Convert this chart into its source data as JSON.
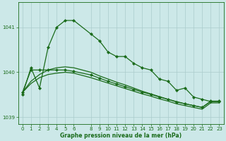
{
  "title": "Graphe pression niveau de la mer (hPa)",
  "bg_color": "#cce8e8",
  "grid_color": "#aacccc",
  "line_color": "#1a6b1a",
  "xlim": [
    -0.5,
    23.5
  ],
  "ylim": [
    1038.85,
    1041.55
  ],
  "yticks": [
    1039,
    1040,
    1041
  ],
  "xticks": [
    0,
    1,
    2,
    3,
    4,
    5,
    6,
    8,
    9,
    10,
    11,
    12,
    13,
    14,
    15,
    16,
    17,
    18,
    19,
    20,
    21,
    22,
    23
  ],
  "series": [
    {
      "x": [
        0,
        1,
        2,
        3,
        4,
        5,
        6,
        8,
        9,
        10,
        11,
        12,
        13,
        14,
        15,
        16,
        17,
        18,
        19,
        20,
        21,
        22,
        23
      ],
      "y": [
        1039.5,
        1040.1,
        1039.65,
        1040.55,
        1041.0,
        1041.15,
        1041.15,
        1040.85,
        1040.7,
        1040.45,
        1040.35,
        1040.35,
        1040.2,
        1040.1,
        1040.05,
        1039.85,
        1039.8,
        1039.6,
        1039.65,
        1039.45,
        1039.4,
        1039.35,
        1039.35
      ],
      "marker": "D",
      "markersize": 2.2,
      "lw": 0.9
    },
    {
      "x": [
        0,
        1,
        2,
        3,
        4,
        5,
        6,
        8,
        9,
        10,
        11,
        12,
        13,
        14,
        15,
        16,
        17,
        18,
        19,
        20,
        21,
        22,
        23
      ],
      "y": [
        1039.55,
        1039.8,
        1039.95,
        1040.05,
        1040.1,
        1040.12,
        1040.1,
        1040.0,
        1039.92,
        1039.85,
        1039.78,
        1039.72,
        1039.65,
        1039.58,
        1039.52,
        1039.46,
        1039.4,
        1039.35,
        1039.3,
        1039.26,
        1039.22,
        1039.35,
        1039.35
      ],
      "marker": null,
      "markersize": 0,
      "lw": 0.9
    },
    {
      "x": [
        0,
        1,
        2,
        3,
        4,
        5,
        6,
        8,
        9,
        10,
        11,
        12,
        13,
        14,
        15,
        16,
        17,
        18,
        19,
        20,
        21,
        22,
        23
      ],
      "y": [
        1039.55,
        1039.75,
        1039.88,
        1039.95,
        1039.98,
        1040.0,
        1039.98,
        1039.88,
        1039.82,
        1039.76,
        1039.7,
        1039.64,
        1039.58,
        1039.52,
        1039.47,
        1039.41,
        1039.36,
        1039.3,
        1039.26,
        1039.22,
        1039.18,
        1039.32,
        1039.32
      ],
      "marker": null,
      "markersize": 0,
      "lw": 0.9
    },
    {
      "x": [
        0,
        1,
        2,
        3,
        4,
        5,
        6,
        8,
        9,
        10,
        11,
        12,
        13,
        14,
        15,
        16,
        17,
        18,
        19,
        20,
        21,
        22,
        23
      ],
      "y": [
        1039.55,
        1040.05,
        1040.05,
        1040.05,
        1040.05,
        1040.05,
        1040.02,
        1039.94,
        1039.87,
        1039.8,
        1039.74,
        1039.68,
        1039.62,
        1039.56,
        1039.51,
        1039.45,
        1039.4,
        1039.34,
        1039.3,
        1039.26,
        1039.22,
        1039.36,
        1039.36
      ],
      "marker": "D",
      "markersize": 2.2,
      "lw": 0.9
    }
  ]
}
